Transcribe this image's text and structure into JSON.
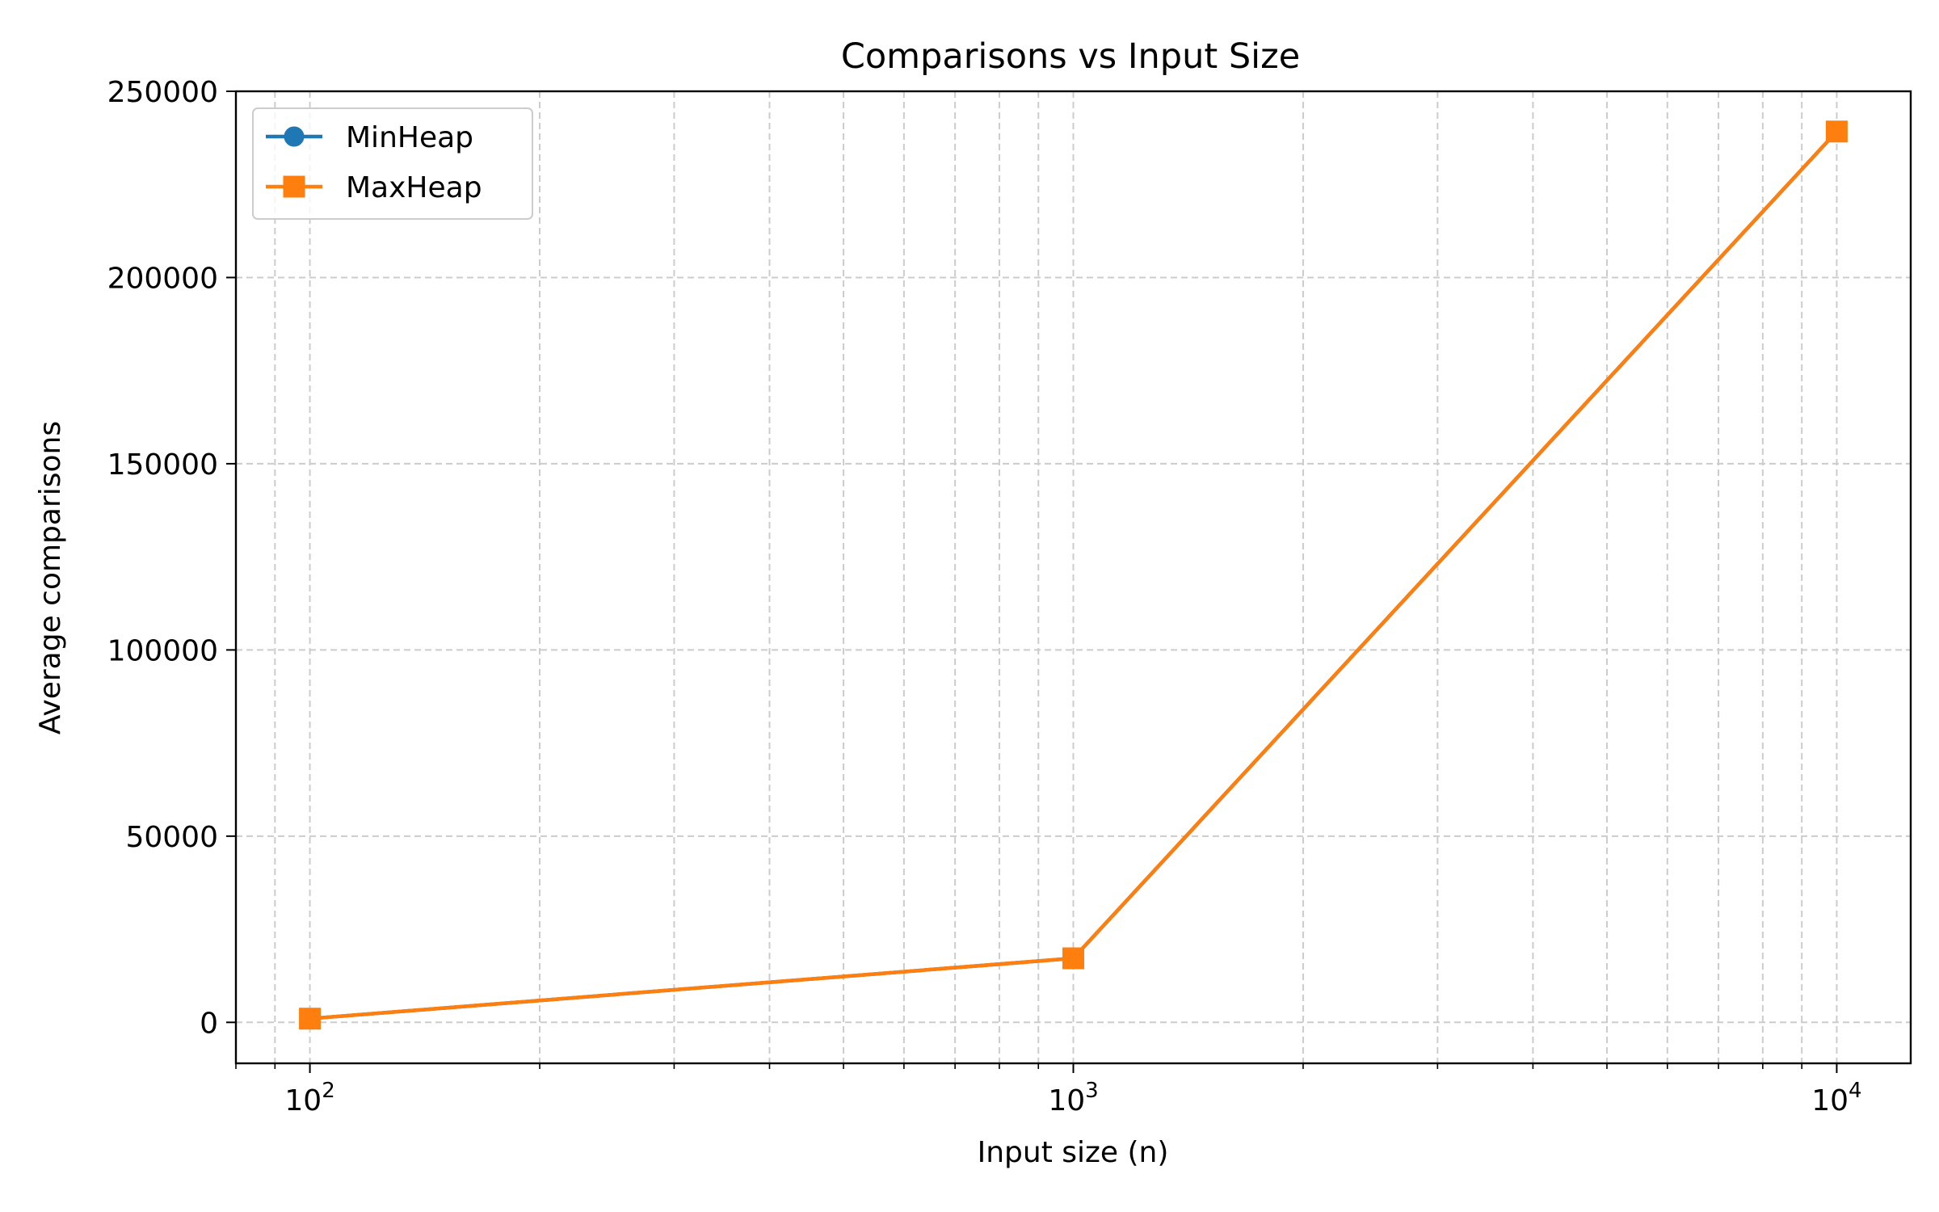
{
  "chart_data": {
    "type": "line",
    "title": "Comparisons vs Input Size",
    "xlabel": "Input size (n)",
    "ylabel": "Average comparisons",
    "x_scale": "log",
    "xlim": [
      80,
      12500
    ],
    "ylim": [
      -11000,
      250000
    ],
    "x_ticks": [
      {
        "value": 100,
        "base": "10",
        "exp": "2"
      },
      {
        "value": 1000,
        "base": "10",
        "exp": "3"
      },
      {
        "value": 10000,
        "base": "10",
        "exp": "4"
      }
    ],
    "y_ticks": [
      0,
      50000,
      100000,
      150000,
      200000,
      250000
    ],
    "grid": true,
    "legend_position": "top-left",
    "x": [
      100,
      1000,
      10000
    ],
    "series": [
      {
        "name": "MinHeap",
        "color": "#1f77b4",
        "marker": "circle",
        "values": [
          1000,
          17200,
          239200
        ]
      },
      {
        "name": "MaxHeap",
        "color": "#ff7f0e",
        "marker": "square",
        "values": [
          1000,
          17200,
          239200
        ]
      }
    ]
  }
}
